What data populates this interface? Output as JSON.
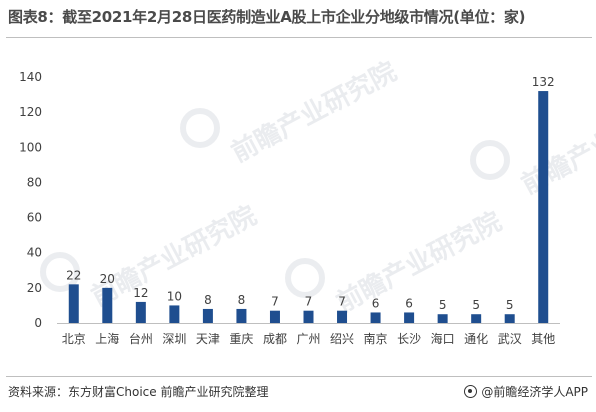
{
  "title": "图表8：截至2021年2月28日医药制造业A股上市企业分地级市情况(单位：家)",
  "source": "资料来源：东方财富Choice 前瞻产业研究院整理",
  "brand": "@前瞻经济学人APP",
  "watermark": "前瞻产业研究院",
  "colors": {
    "bar": "#1f4e8f",
    "axis": "#bfbfbf",
    "text": "#404040"
  },
  "chart_data": {
    "type": "bar",
    "categories": [
      "北京",
      "上海",
      "台州",
      "深圳",
      "天津",
      "重庆",
      "成都",
      "广州",
      "绍兴",
      "南京",
      "长沙",
      "海口",
      "通化",
      "武汉",
      "其他"
    ],
    "values": [
      22,
      20,
      12,
      10,
      8,
      8,
      7,
      7,
      7,
      6,
      6,
      5,
      5,
      5,
      132
    ],
    "ylim": [
      0,
      140
    ],
    "yticks": [
      0,
      20,
      40,
      60,
      80,
      100,
      120,
      140
    ],
    "grid": false,
    "data_labels": true
  }
}
